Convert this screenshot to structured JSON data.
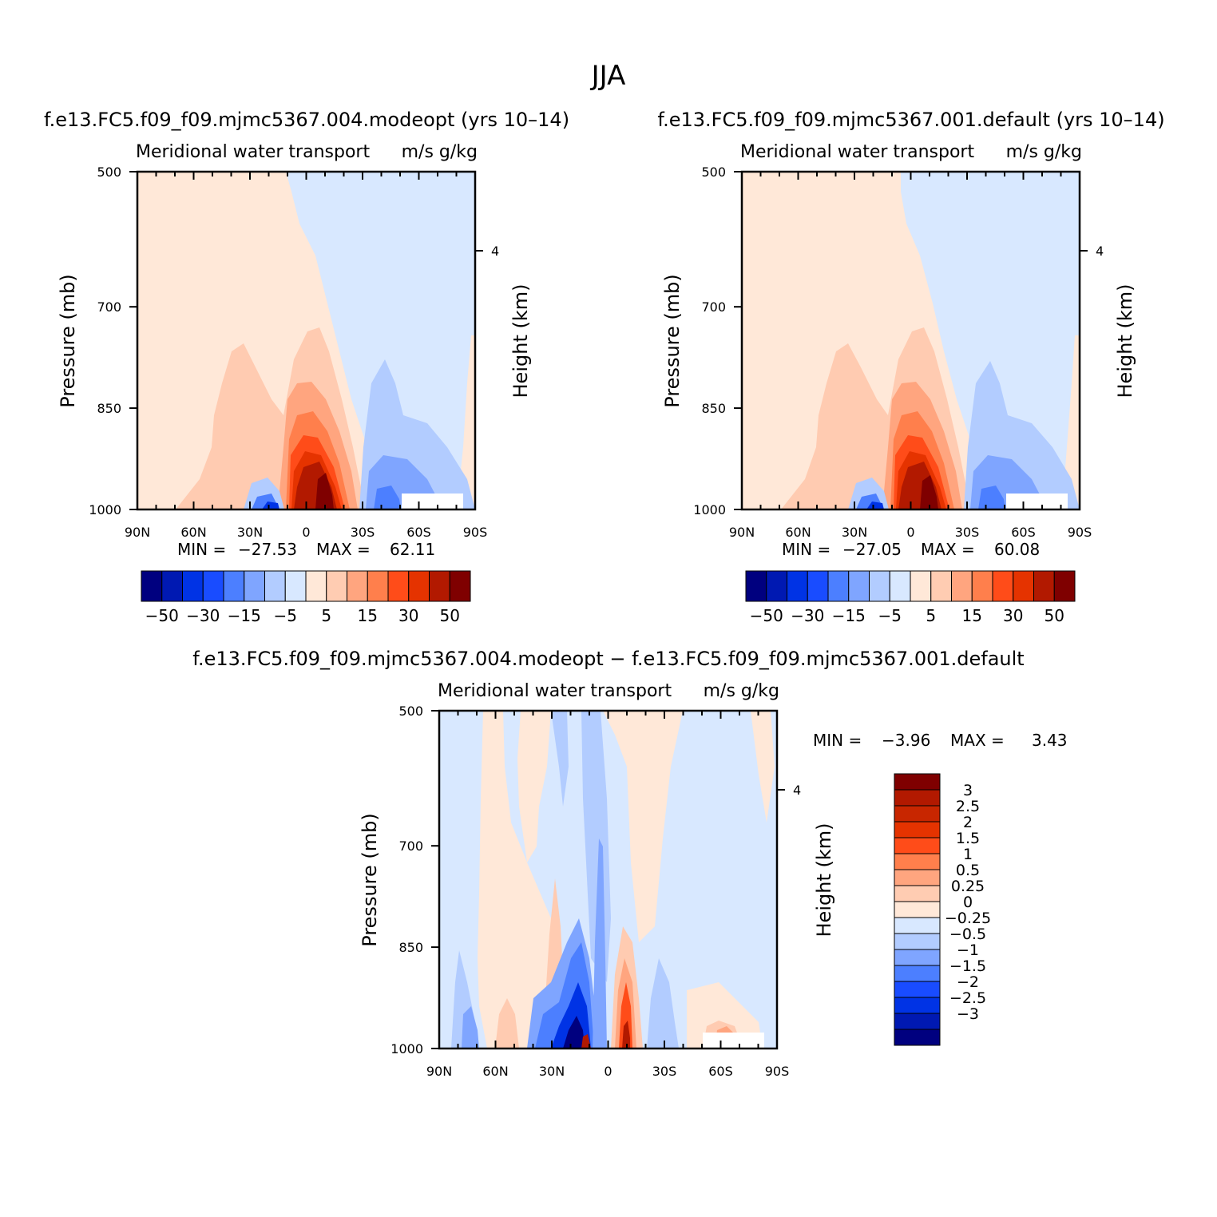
{
  "page_title": "JJA",
  "chart_data": [
    {
      "type": "contour",
      "title": "f.e13.FC5.f09_f09.mjmc5367.004.modeopt (yrs 10–14)",
      "left_label": "Meridional water transport",
      "right_label": "m/s g/kg",
      "ylabel": "Pressure (mb)",
      "ylabel_right": "Height (km)",
      "x_ticks": [
        "90N",
        "60N",
        "30N",
        "0",
        "30S",
        "60S",
        "90S"
      ],
      "y_ticks": [
        "500",
        "700",
        "850",
        "1000"
      ],
      "right_ticks": [
        "4"
      ],
      "ylim": [
        1000,
        500
      ],
      "min_label": "MIN =",
      "min_value": "−27.53",
      "max_label": "MAX =",
      "max_value": "62.11",
      "colorbar_labels": [
        "−50",
        "−30",
        "−15",
        "−5",
        "5",
        "15",
        "30",
        "50"
      ]
    },
    {
      "type": "contour",
      "title": "f.e13.FC5.f09_f09.mjmc5367.001.default (yrs 10–14)",
      "left_label": "Meridional water transport",
      "right_label": "m/s g/kg",
      "ylabel": "Pressure (mb)",
      "ylabel_right": "Height (km)",
      "x_ticks": [
        "90N",
        "60N",
        "30N",
        "0",
        "30S",
        "60S",
        "90S"
      ],
      "y_ticks": [
        "500",
        "700",
        "850",
        "1000"
      ],
      "right_ticks": [
        "4"
      ],
      "ylim": [
        1000,
        500
      ],
      "min_label": "MIN =",
      "min_value": "−27.05",
      "max_label": "MAX =",
      "max_value": "60.08",
      "colorbar_labels": [
        "−50",
        "−30",
        "−15",
        "−5",
        "5",
        "15",
        "30",
        "50"
      ]
    },
    {
      "type": "contour",
      "title": "f.e13.FC5.f09_f09.mjmc5367.004.modeopt − f.e13.FC5.f09_f09.mjmc5367.001.default",
      "left_label": "Meridional water transport",
      "right_label": "m/s g/kg",
      "ylabel": "Pressure (mb)",
      "ylabel_right": "Height (km)",
      "x_ticks": [
        "90N",
        "60N",
        "30N",
        "0",
        "30S",
        "60S",
        "90S"
      ],
      "y_ticks": [
        "500",
        "700",
        "850",
        "1000"
      ],
      "right_ticks": [
        "4"
      ],
      "ylim": [
        1000,
        500
      ],
      "min_label": "MIN =",
      "min_value": "−3.96",
      "max_label": "MAX =",
      "max_value": "3.43",
      "colorbar_labels": [
        "3",
        "2.5",
        "2",
        "1.5",
        "1",
        "0.5",
        "0.25",
        "0",
        "−0.25",
        "−0.5",
        "−1",
        "−1.5",
        "−2",
        "−2.5",
        "−3"
      ]
    }
  ],
  "colors": {
    "scale16": [
      "#00007f",
      "#0019b2",
      "#0033e5",
      "#194cff",
      "#4c7fff",
      "#7fa5ff",
      "#b2ccff",
      "#d8e8ff",
      "#ffe8d8",
      "#ffccb2",
      "#ffa57f",
      "#ff7f4c",
      "#ff4c19",
      "#e53300",
      "#b21900",
      "#7f0000"
    ],
    "scale17": [
      "#00007f",
      "#0019b2",
      "#0033e5",
      "#194cff",
      "#4c7fff",
      "#7fa5ff",
      "#b2ccff",
      "#d8e8ff",
      "#ffe8d8",
      "#ffccb2",
      "#ffa57f",
      "#ff7f4c",
      "#ff4c19",
      "#e53300",
      "#c82600",
      "#b21900",
      "#7f0000"
    ]
  }
}
